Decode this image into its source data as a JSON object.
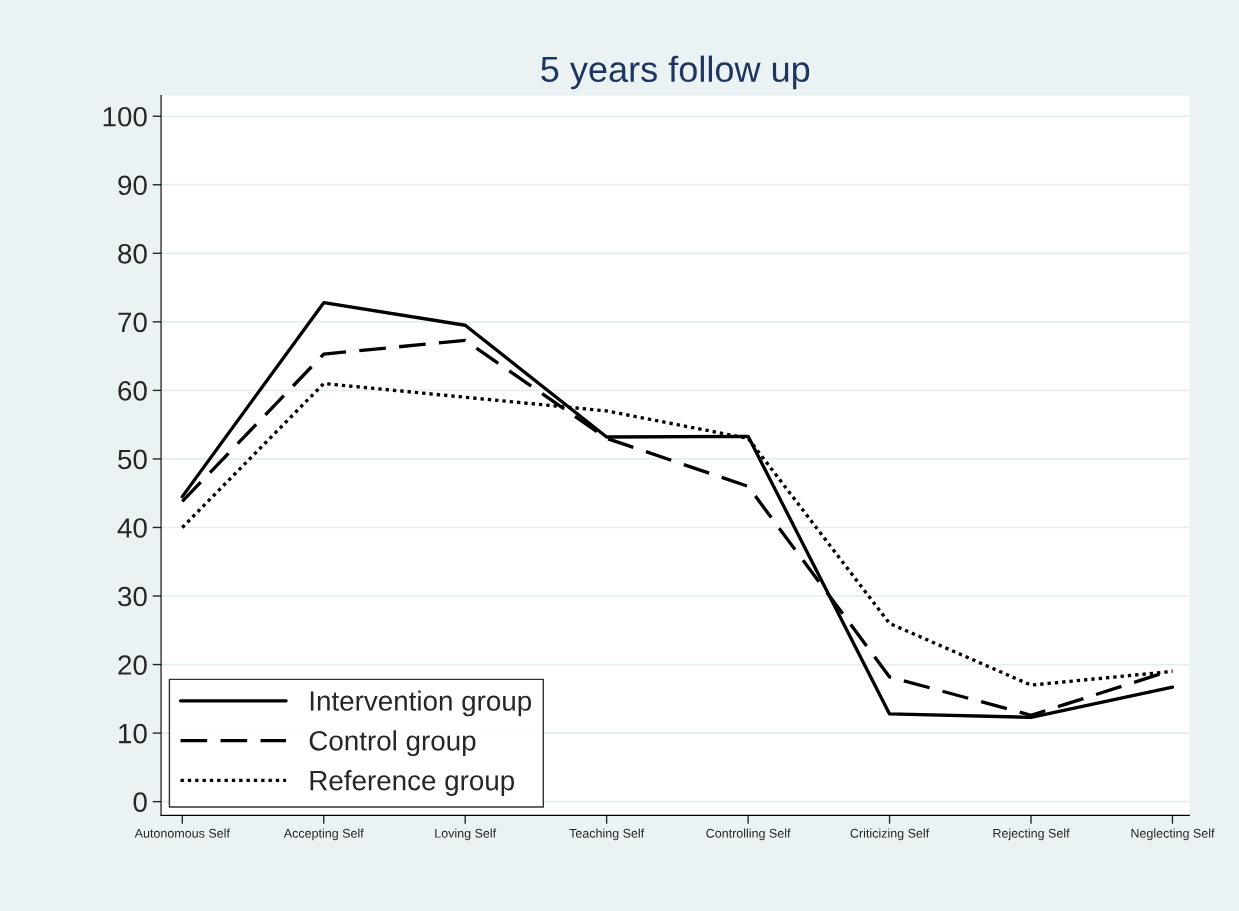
{
  "chart_data": {
    "type": "line",
    "title": "5 years follow up",
    "categories": [
      "Autonomous Self",
      "Accepting Self",
      "Loving Self",
      "Teaching Self",
      "Controlling Self",
      "Criticizing Self",
      "Rejecting Self",
      "Neglecting Self"
    ],
    "series": [
      {
        "name": "Intervention group",
        "color": "#000000",
        "line_style": "solid",
        "values": [
          44.5,
          72.8,
          69.5,
          53.2,
          53.3,
          12.8,
          12.3,
          16.7
        ]
      },
      {
        "name": "Control group",
        "color": "#000000",
        "line_style": "dashed",
        "values": [
          43.8,
          65.3,
          67.3,
          53.0,
          46.0,
          18.2,
          12.6,
          19.2
        ]
      },
      {
        "name": "Reference group",
        "color": "#000000",
        "line_style": "dotted",
        "values": [
          40.0,
          61.0,
          59.0,
          57.0,
          53.0,
          26.0,
          17.0,
          19.0
        ]
      }
    ],
    "ylim": [
      -2,
      103
    ],
    "yticks": [
      0,
      10,
      20,
      30,
      40,
      50,
      60,
      70,
      80,
      90,
      100
    ],
    "grid": "y",
    "legend": "bottom left",
    "marker": "none"
  }
}
